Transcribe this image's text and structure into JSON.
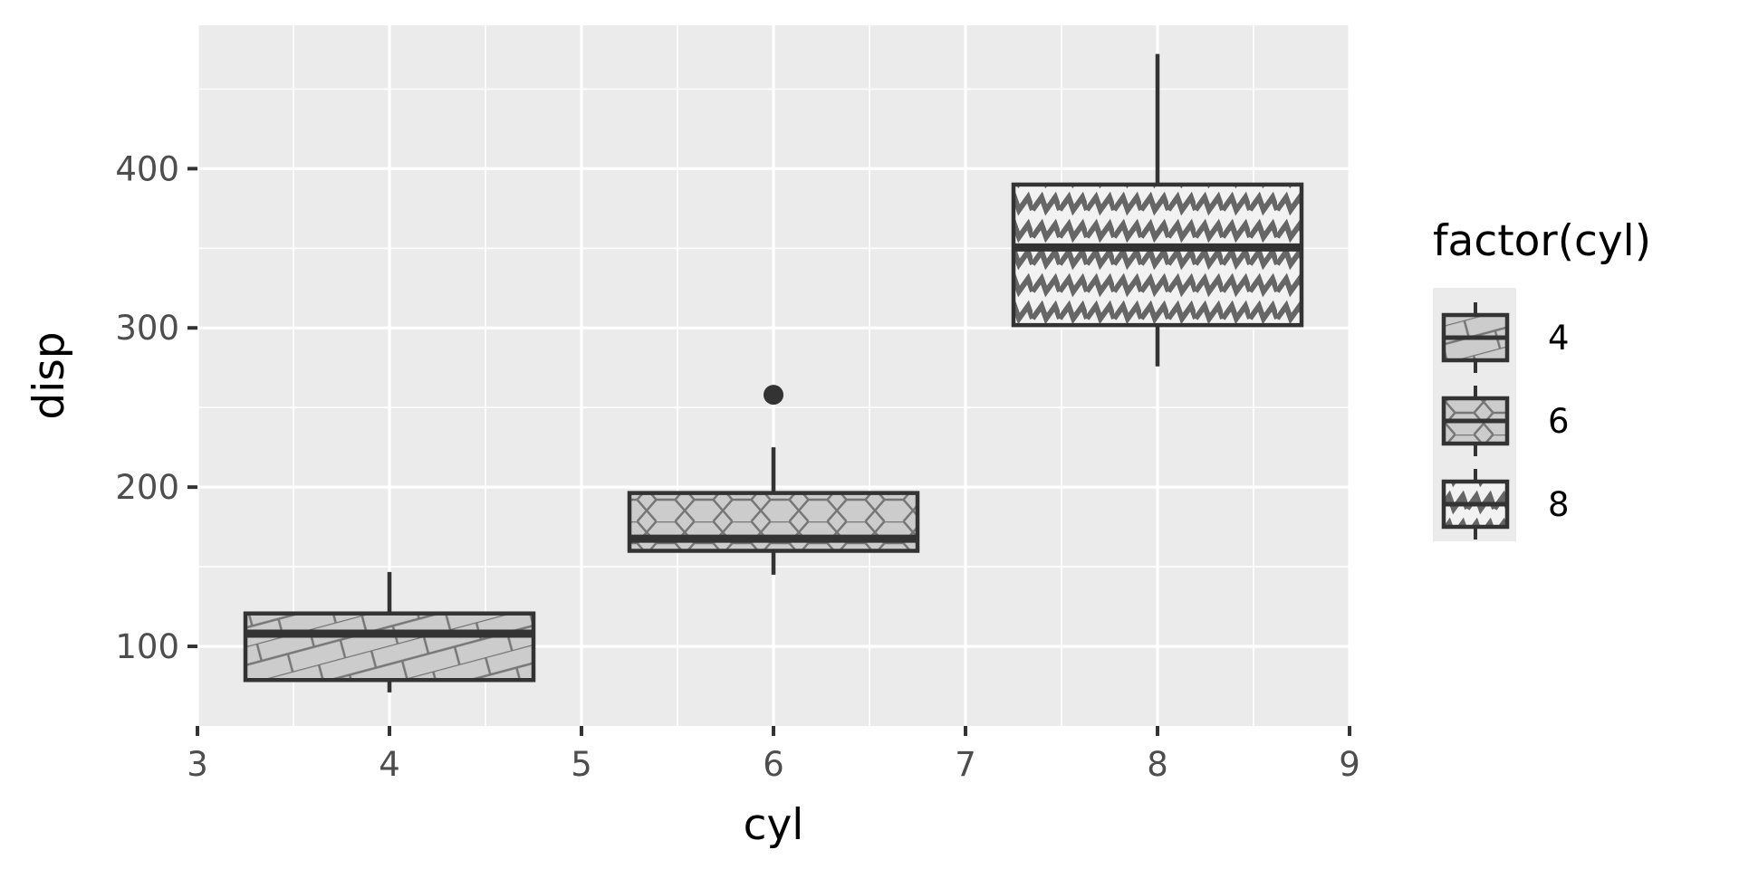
{
  "chart_data": {
    "type": "boxplot",
    "title": "",
    "xlabel": "cyl",
    "ylabel": "disp",
    "xlim": [
      3,
      9
    ],
    "ylim": [
      50,
      490
    ],
    "x_ticks": [
      "3",
      "4",
      "5",
      "6",
      "7",
      "8",
      "9"
    ],
    "y_ticks": [
      "100",
      "200",
      "300",
      "400"
    ],
    "grid": true,
    "legend": {
      "title": "factor(cyl)",
      "position": "right",
      "entries": [
        "4",
        "6",
        "8"
      ]
    },
    "series": [
      {
        "name": "4",
        "x": 4,
        "whisker_low": 71.1,
        "q1": 78.85,
        "median": 108.0,
        "q3": 120.65,
        "whisker_high": 146.7,
        "outliers": [],
        "pattern": "bricks"
      },
      {
        "name": "6",
        "x": 6,
        "whisker_low": 145.0,
        "q1": 160.0,
        "median": 167.6,
        "q3": 196.3,
        "whisker_high": 225.0,
        "outliers": [
          258.0
        ],
        "pattern": "hexagons"
      },
      {
        "name": "8",
        "x": 8,
        "whisker_low": 275.8,
        "q1": 301.75,
        "median": 350.5,
        "q3": 390.0,
        "whisker_high": 472.0,
        "outliers": [],
        "pattern": "zigzag"
      }
    ],
    "colors": {
      "panel_bg": "#ebebeb",
      "grid_major": "#ffffff",
      "box_fill": "#cccccc",
      "box_outline": "#333333",
      "pattern_line": "#777777",
      "zigzag_fill": "#f2f2f2"
    }
  }
}
